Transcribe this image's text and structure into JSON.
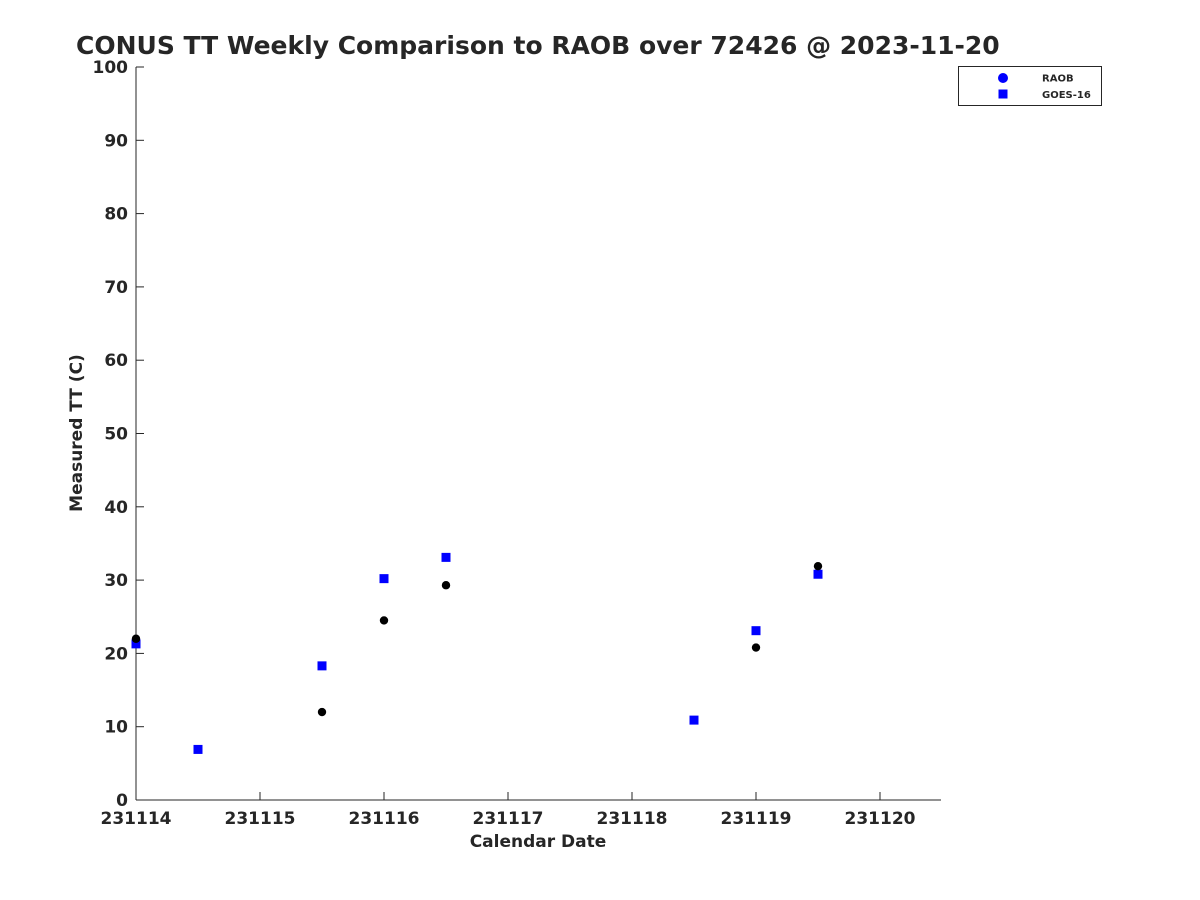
{
  "chart_data": {
    "type": "scatter",
    "title": "CONUS TT Weekly Comparison to RAOB over 72426 @ 2023-11-20",
    "xlabel": "Calendar Date",
    "ylabel": "Measured TT (C)",
    "x_tick_labels": [
      "231114",
      "231115",
      "231116",
      "231117",
      "231118",
      "231119",
      "231120"
    ],
    "x_tick_values": [
      0,
      1,
      2,
      3,
      4,
      5,
      6
    ],
    "x_range_days": [
      0,
      6.5
    ],
    "ylim": [
      0,
      100
    ],
    "y_ticks": [
      0,
      10,
      20,
      30,
      40,
      50,
      60,
      70,
      80,
      90,
      100
    ],
    "grid": false,
    "legend_position": "top-right",
    "series": [
      {
        "name": "RAOB",
        "marker": "circle",
        "legend_color": "#0000ff",
        "point_color": "#000000",
        "points": [
          {
            "x": "231114 00Z",
            "day": 0.0,
            "y": 22.0
          },
          {
            "x": "231115 12Z",
            "day": 1.5,
            "y": 12.0
          },
          {
            "x": "231116 00Z",
            "day": 2.0,
            "y": 24.5
          },
          {
            "x": "231116 12Z",
            "day": 2.5,
            "y": 29.3
          },
          {
            "x": "231119 00Z",
            "day": 5.0,
            "y": 20.8
          },
          {
            "x": "231119 12Z",
            "day": 5.5,
            "y": 31.9
          }
        ]
      },
      {
        "name": "GOES-16",
        "marker": "square",
        "legend_color": "#0000ff",
        "point_color": "#0000ff",
        "points": [
          {
            "x": "231114 00Z",
            "day": 0.0,
            "y": 21.3
          },
          {
            "x": "231114 12Z",
            "day": 0.5,
            "y": 6.9
          },
          {
            "x": "231115 12Z",
            "day": 1.5,
            "y": 18.3
          },
          {
            "x": "231116 00Z",
            "day": 2.0,
            "y": 30.2
          },
          {
            "x": "231116 12Z",
            "day": 2.5,
            "y": 33.1
          },
          {
            "x": "231118 12Z",
            "day": 4.5,
            "y": 10.9
          },
          {
            "x": "231119 00Z",
            "day": 5.0,
            "y": 23.1
          },
          {
            "x": "231119 12Z",
            "day": 5.5,
            "y": 30.8
          }
        ]
      }
    ]
  }
}
